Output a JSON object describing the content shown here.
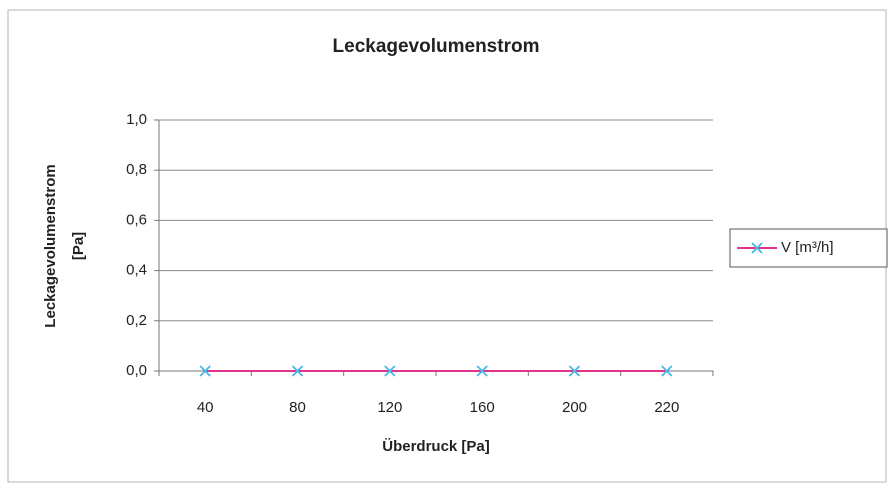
{
  "chart_data": {
    "type": "line",
    "title": "Leckagevolumenstrom",
    "x_label": "Überdruck [Pa]",
    "y_label": [
      "Leckagevolumenstrom",
      "[Pa]"
    ],
    "categories": [
      "40",
      "80",
      "120",
      "160",
      "200",
      "220"
    ],
    "series": [
      {
        "name": "V [m³/h]",
        "color": "#e0338c",
        "marker_color": "#46b8ea",
        "values": [
          0,
          0,
          0,
          0,
          0,
          0
        ]
      }
    ],
    "ylim": [
      0,
      1
    ],
    "yticks": [
      {
        "value": 0,
        "label": "0,0"
      },
      {
        "value": 0.2,
        "label": "0,2"
      },
      {
        "value": 0.4,
        "label": "0,4"
      },
      {
        "value": 0.6,
        "label": "0,6"
      },
      {
        "value": 0.8,
        "label": "0,8"
      },
      {
        "value": 1,
        "label": "1,0"
      }
    ],
    "grid": true,
    "legend": "right"
  }
}
